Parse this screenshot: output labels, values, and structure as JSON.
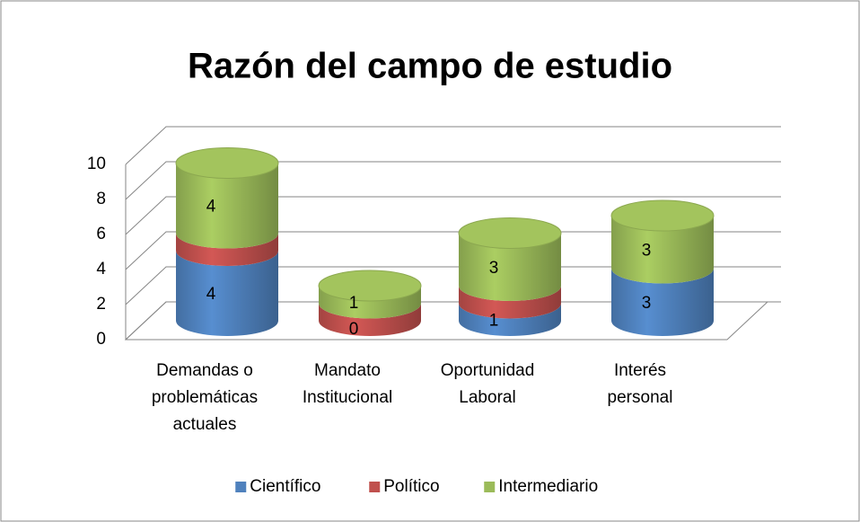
{
  "chart_data": {
    "type": "bar3d_cylinder_stacked",
    "title": "Razón del campo de estudio",
    "categories": [
      "Demandas o problemáticas actuales",
      "Mandato Institucional",
      "Oportunidad Laboral",
      "Interés personal"
    ],
    "series": [
      {
        "name": "Científico",
        "color": "#4f81bd",
        "values": [
          4,
          0,
          1,
          3
        ],
        "data_labels": true
      },
      {
        "name": "Político",
        "color": "#c0504d",
        "values": [
          1,
          1,
          1,
          0
        ],
        "data_labels": false
      },
      {
        "name": "Intermediario",
        "color": "#9bbb59",
        "values": [
          4,
          1,
          3,
          3
        ],
        "data_labels": true
      }
    ],
    "ylim": [
      0,
      10
    ],
    "yticks": [
      0,
      2,
      4,
      6,
      8,
      10
    ],
    "grid": true,
    "legend": "bottom"
  }
}
